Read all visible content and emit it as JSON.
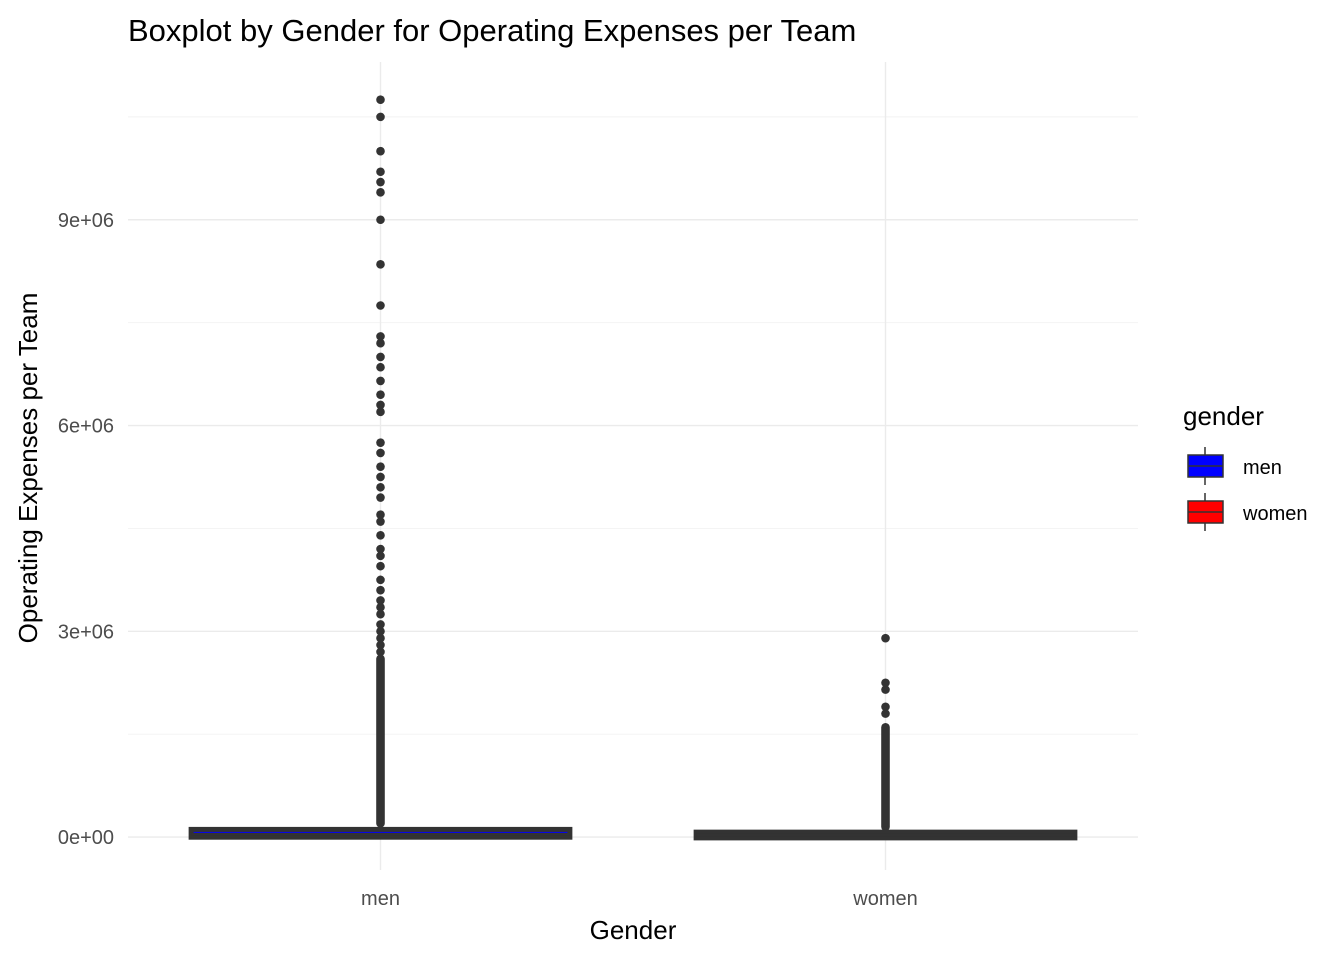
{
  "chart_data": {
    "type": "boxplot",
    "title": "Boxplot by Gender for Operating Expenses per Team",
    "xlabel": "Gender",
    "ylabel": "Operating Expenses per Team",
    "categories": [
      "men",
      "women"
    ],
    "ylim": [
      -480000,
      11300000
    ],
    "y_ticks": [
      0,
      3000000,
      6000000,
      9000000
    ],
    "y_tick_labels": [
      "0e+00",
      "3e+06",
      "6e+06",
      "9e+06"
    ],
    "grid": true,
    "legend": {
      "title": "gender",
      "position": "right",
      "entries": [
        {
          "label": "men",
          "color": "#0000ff"
        },
        {
          "label": "women",
          "color": "#ff0000"
        }
      ]
    },
    "series": [
      {
        "category": "men",
        "color": "#0000ff",
        "stats": {
          "min": 0,
          "q1": 20000,
          "median": 40000,
          "q3": 90000,
          "max": 200000
        },
        "outlier_dense_range": [
          200000,
          2600000
        ],
        "outliers": [
          2700000,
          2800000,
          2900000,
          3000000,
          3100000,
          3250000,
          3350000,
          3450000,
          3600000,
          3750000,
          3950000,
          4100000,
          4200000,
          4400000,
          4600000,
          4700000,
          4950000,
          5100000,
          5250000,
          5400000,
          5600000,
          5750000,
          6200000,
          6300000,
          6450000,
          6650000,
          6850000,
          7000000,
          7200000,
          7300000,
          7750000,
          8350000,
          9000000,
          9400000,
          9550000,
          9700000,
          10000000,
          10500000,
          10750000
        ]
      },
      {
        "category": "women",
        "color": "#ff0000",
        "stats": {
          "min": 0,
          "q1": 10000,
          "median": 25000,
          "q3": 50000,
          "max": 150000
        },
        "outlier_dense_range": [
          150000,
          1600000
        ],
        "outliers": [
          1800000,
          1900000,
          2150000,
          2250000,
          2900000
        ]
      }
    ]
  }
}
